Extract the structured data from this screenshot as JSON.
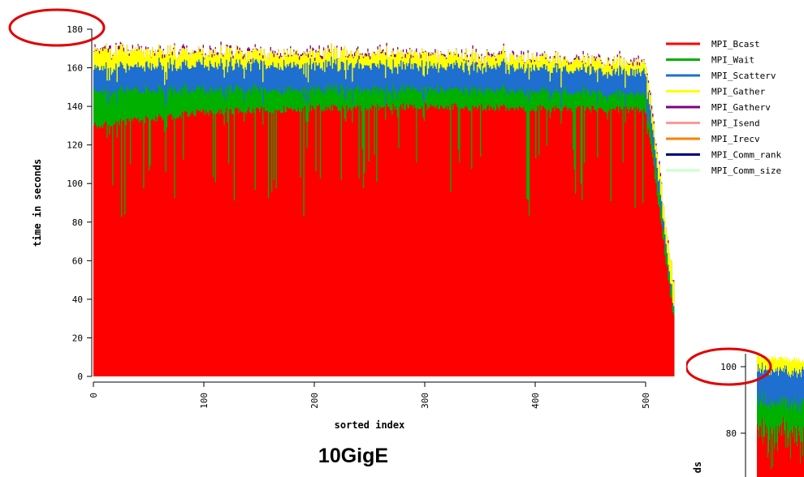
{
  "caption": "10GigE",
  "chart_data": [
    {
      "type": "area",
      "stacked": true,
      "title": "",
      "xlabel": "sorted index",
      "ylabel": "time in seconds",
      "xlim": [
        0,
        525
      ],
      "ylim": [
        0,
        180
      ],
      "x_ticks": [
        "0",
        "100",
        "200",
        "300",
        "400",
        "500"
      ],
      "y_ticks": [
        "0",
        "20",
        "40",
        "60",
        "80",
        "100",
        "120",
        "140",
        "160",
        "180"
      ],
      "legend_position": "right",
      "series": [
        {
          "name": "MPI_Bcast",
          "color": "#ff0000",
          "approx_values_at": {
            "x": [
              0,
              100,
              200,
              300,
              400,
              500,
              525
            ],
            "y": [
              130,
              137,
              139,
              140,
              139,
              138,
              30
            ]
          }
        },
        {
          "name": "MPI_Wait",
          "color": "#00b000",
          "approx_values_at": {
            "x": [
              0,
              100,
              200,
              300,
              400,
              500,
              525
            ],
            "y": [
              18,
              12,
              10,
              9,
              9,
              8,
              4
            ]
          }
        },
        {
          "name": "MPI_Scatterv",
          "color": "#1e6fd0",
          "approx_values_at": {
            "x": [
              0,
              100,
              200,
              300,
              400,
              500,
              525
            ],
            "y": [
              12,
              13,
              13,
              12,
              12,
              11,
              2
            ]
          }
        },
        {
          "name": "MPI_Gather",
          "color": "#ffff00",
          "approx_values_at": {
            "x": [
              0,
              100,
              200,
              300,
              400,
              500,
              525
            ],
            "y": [
              10,
              6,
              6,
              6,
              5,
              5,
              12
            ]
          }
        },
        {
          "name": "MPI_Gatherv",
          "color": "#800080",
          "approx_values_at": {
            "x": [
              0,
              100,
              200,
              300,
              400,
              500,
              525
            ],
            "y": [
              0.5,
              0.5,
              0.5,
              0.5,
              0.5,
              0.5,
              0.5
            ]
          }
        },
        {
          "name": "MPI_Isend",
          "color": "#ff9999"
        },
        {
          "name": "MPI_Irecv",
          "color": "#ff8000"
        },
        {
          "name": "MPI_Comm_rank",
          "color": "#000080"
        },
        {
          "name": "MPI_Comm_size",
          "color": "#ccffcc"
        }
      ],
      "total_approx": {
        "x": [
          0,
          100,
          200,
          300,
          400,
          500,
          525
        ],
        "y": [
          177,
          172,
          171,
          170,
          168,
          162,
          50
        ]
      },
      "highlight": "max y (~180) circled in red"
    },
    {
      "type": "area",
      "stacked": true,
      "partial": true,
      "title": "",
      "xlabel": "",
      "ylabel": "ds",
      "y_ticks": [
        "80",
        "100"
      ],
      "ylim_visible": [
        75,
        105
      ],
      "total_approx_start": 103,
      "highlight": "max y (~100) circled in red"
    }
  ]
}
